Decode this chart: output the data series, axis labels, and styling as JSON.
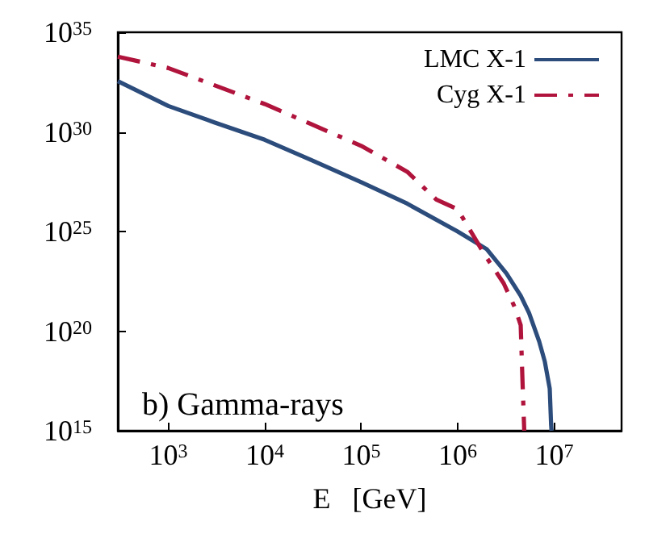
{
  "chart_data": {
    "type": "line",
    "xlabel": "E   [GeV]",
    "annotations": [
      "b) Gamma-rays"
    ],
    "log": "xy",
    "xlim": [
      300,
      50000000.0
    ],
    "ylim": [
      1000000000000000.0,
      1e+35
    ],
    "xticks": [
      {
        "value": 1000.0,
        "label": "10$^{3}$"
      },
      {
        "value": 10000.0,
        "label": "10$^{4}$"
      },
      {
        "value": 100000.0,
        "label": "10$^{5}$"
      },
      {
        "value": 1000000.0,
        "label": "10$^{6}$"
      },
      {
        "value": 10000000.0,
        "label": "10$^{7}$"
      }
    ],
    "yticks": [
      {
        "value": 1000000000000000.0,
        "label": "10$^{15}$"
      },
      {
        "value": 1e+20,
        "label": "10$^{20}$"
      },
      {
        "value": 1e+25,
        "label": "10$^{25}$"
      },
      {
        "value": 1e+30,
        "label": "10$^{30}$"
      },
      {
        "value": 1e+35,
        "label": "10$^{35}$"
      }
    ],
    "grid": false,
    "legend": "top right",
    "marker": "none",
    "series": [
      {
        "name": "LMC X-1",
        "color": "#2c4c7c",
        "line_style": "solid",
        "x": [
          300,
          1000.0,
          3000.0,
          10000.0,
          30000.0,
          100000.0,
          300000.0,
          1000000.0,
          2000000.0,
          3200000.0,
          4500000.0,
          5500000.0,
          7000000.0,
          8000000.0,
          9000000.0,
          9300000.0,
          9400000.0
        ],
        "values": [
          3.5e+32,
          2e+31,
          3e+30,
          4e+29,
          4e+28,
          3e+27,
          2.5e+26,
          1e+25,
          1.3e+24,
          8e+22,
          6e+21,
          8e+20,
          3e+19,
          3e+18,
          1.3e+17,
          2000000000000000.0,
          1000000000000000.0
        ]
      },
      {
        "name": "Cyg X-1",
        "color": "#b0143c",
        "line_style": "dashdot",
        "x": [
          300,
          1000.0,
          3000.0,
          10000.0,
          30000.0,
          100000.0,
          300000.0,
          600000.0,
          1000000.0,
          1900000.0,
          3000000.0,
          3900000.0,
          4500000.0,
          4700000.0,
          4900000.0
        ],
        "values": [
          6e+33,
          1.6e+33,
          2.2e+32,
          2.5e+31,
          2.5e+30,
          2e+29,
          1e+28,
          4e+26,
          1.3e+26,
          7e+23,
          2.5e+22,
          1.6e+21,
          2e+20,
          3e+17,
          1000000000000000.0
        ]
      }
    ]
  }
}
